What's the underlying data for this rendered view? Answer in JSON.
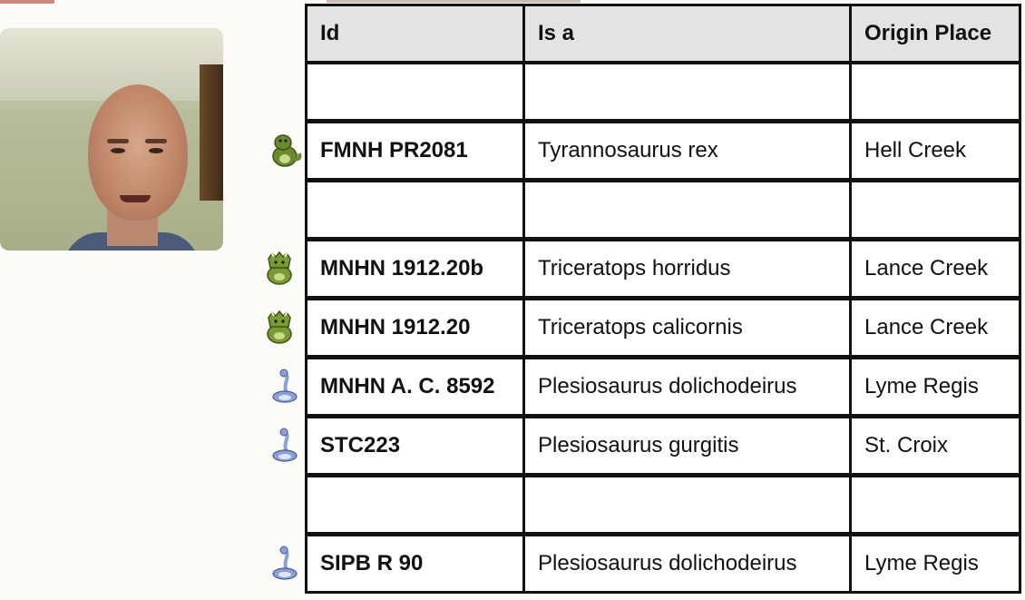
{
  "table": {
    "headers": [
      "Id",
      "Is a",
      "Origin Place"
    ],
    "rows": [
      {
        "id": "",
        "is_a": "",
        "origin": "",
        "icon": ""
      },
      {
        "id": "FMNH PR2081",
        "is_a": "Tyrannosaurus rex",
        "origin": "Hell Creek",
        "icon": "trex-icon"
      },
      {
        "id": "",
        "is_a": "",
        "origin": "",
        "icon": ""
      },
      {
        "id": "MNHN 1912.20b",
        "is_a": "Triceratops horridus",
        "origin": "Lance Creek",
        "icon": "triceratops-icon"
      },
      {
        "id": "MNHN 1912.20",
        "is_a": "Triceratops calicornis",
        "origin": "Lance Creek",
        "icon": "triceratops-icon"
      },
      {
        "id": "MNHN A. C. 8592",
        "is_a": "Plesiosaurus dolichodeirus",
        "origin": "Lyme Regis",
        "icon": "plesiosaur-icon"
      },
      {
        "id": "STC223",
        "is_a": "Plesiosaurus gurgitis",
        "origin": "St. Croix",
        "icon": "plesiosaur-icon"
      },
      {
        "id": "",
        "is_a": "",
        "origin": "",
        "icon": ""
      },
      {
        "id": "SIPB R 90",
        "is_a": "Plesiosaurus dolichodeirus",
        "origin": "Lyme Regis",
        "icon": "plesiosaur-icon"
      }
    ]
  },
  "colors": {
    "trex": "#6b8a2e",
    "triceratops": "#7a9a34",
    "plesiosaur": "#8aa0d8"
  }
}
